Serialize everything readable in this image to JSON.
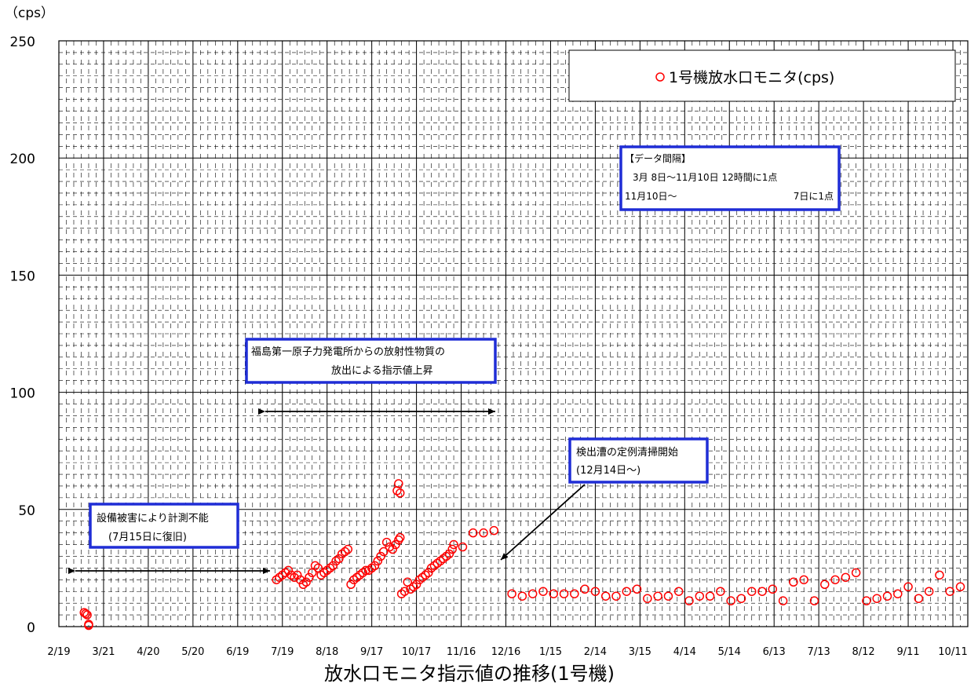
{
  "chart_data": {
    "type": "scatter",
    "title": "放水口モニタ指示値の推移(1号機)",
    "ylabel": "（cps）",
    "xlabel": "",
    "ylim": [
      0,
      250
    ],
    "yticks": [
      0,
      50,
      100,
      150,
      200,
      250
    ],
    "xlim": [
      "2011-02-19",
      "2012-10-21"
    ],
    "xticks": [
      {
        "label": "2/19",
        "date": "2011-02-19"
      },
      {
        "label": "3/21",
        "date": "2011-03-21"
      },
      {
        "label": "4/20",
        "date": "2011-04-20"
      },
      {
        "label": "5/20",
        "date": "2011-05-20"
      },
      {
        "label": "6/19",
        "date": "2011-06-19"
      },
      {
        "label": "7/19",
        "date": "2011-07-19"
      },
      {
        "label": "8/18",
        "date": "2011-08-18"
      },
      {
        "label": "9/17",
        "date": "2011-09-17"
      },
      {
        "label": "10/17",
        "date": "2011-10-17"
      },
      {
        "label": "11/16",
        "date": "2011-11-16"
      },
      {
        "label": "12/16",
        "date": "2011-12-16"
      },
      {
        "label": "1/15",
        "date": "2012-01-15"
      },
      {
        "label": "2/14",
        "date": "2012-02-14"
      },
      {
        "label": "3/15",
        "date": "2012-03-15"
      },
      {
        "label": "4/14",
        "date": "2012-04-14"
      },
      {
        "label": "5/14",
        "date": "2012-05-14"
      },
      {
        "label": "6/13",
        "date": "2012-06-13"
      },
      {
        "label": "7/13",
        "date": "2012-07-13"
      },
      {
        "label": "8/12",
        "date": "2012-08-12"
      },
      {
        "label": "9/11",
        "date": "2012-09-11"
      },
      {
        "label": "10/11",
        "date": "2012-10-11"
      }
    ],
    "grid": true,
    "legend_position": "top-right",
    "series": [
      {
        "name": "1号機放水口モニタ(cps)",
        "color": "#ff0000",
        "marker": "open-circle",
        "points": [
          {
            "x": "2011-03-08",
            "y": 6
          },
          {
            "x": "2011-03-09",
            "y": 5.5
          },
          {
            "x": "2011-03-10",
            "y": 5
          },
          {
            "x": "2011-03-11",
            "y": 1
          },
          {
            "x": "2011-03-11",
            "y": 0.5
          },
          {
            "x": "2011-07-15",
            "y": 20
          },
          {
            "x": "2011-07-17",
            "y": 21
          },
          {
            "x": "2011-07-19",
            "y": 22
          },
          {
            "x": "2011-07-21",
            "y": 23
          },
          {
            "x": "2011-07-23",
            "y": 24
          },
          {
            "x": "2011-07-25",
            "y": 22
          },
          {
            "x": "2011-07-27",
            "y": 21
          },
          {
            "x": "2011-07-29",
            "y": 22
          },
          {
            "x": "2011-07-31",
            "y": 20
          },
          {
            "x": "2011-08-02",
            "y": 18
          },
          {
            "x": "2011-08-04",
            "y": 19
          },
          {
            "x": "2011-08-06",
            "y": 21
          },
          {
            "x": "2011-08-08",
            "y": 23
          },
          {
            "x": "2011-08-10",
            "y": 26
          },
          {
            "x": "2011-08-12",
            "y": 25
          },
          {
            "x": "2011-08-14",
            "y": 22
          },
          {
            "x": "2011-08-16",
            "y": 23
          },
          {
            "x": "2011-08-18",
            "y": 24
          },
          {
            "x": "2011-08-20",
            "y": 25
          },
          {
            "x": "2011-08-22",
            "y": 26
          },
          {
            "x": "2011-08-24",
            "y": 28
          },
          {
            "x": "2011-08-26",
            "y": 29
          },
          {
            "x": "2011-08-28",
            "y": 31
          },
          {
            "x": "2011-08-30",
            "y": 32
          },
          {
            "x": "2011-09-01",
            "y": 33
          },
          {
            "x": "2011-09-03",
            "y": 18
          },
          {
            "x": "2011-09-05",
            "y": 20
          },
          {
            "x": "2011-09-07",
            "y": 21
          },
          {
            "x": "2011-09-09",
            "y": 22
          },
          {
            "x": "2011-09-11",
            "y": 23
          },
          {
            "x": "2011-09-13",
            "y": 24
          },
          {
            "x": "2011-09-15",
            "y": 24
          },
          {
            "x": "2011-09-17",
            "y": 25
          },
          {
            "x": "2011-09-19",
            "y": 26
          },
          {
            "x": "2011-09-21",
            "y": 28
          },
          {
            "x": "2011-09-23",
            "y": 30
          },
          {
            "x": "2011-09-25",
            "y": 32
          },
          {
            "x": "2011-09-27",
            "y": 36
          },
          {
            "x": "2011-09-29",
            "y": 34
          },
          {
            "x": "2011-10-01",
            "y": 33
          },
          {
            "x": "2011-10-03",
            "y": 35
          },
          {
            "x": "2011-10-05",
            "y": 37
          },
          {
            "x": "2011-10-06",
            "y": 38
          },
          {
            "x": "2011-10-04",
            "y": 58
          },
          {
            "x": "2011-10-05",
            "y": 61
          },
          {
            "x": "2011-10-06",
            "y": 57
          },
          {
            "x": "2011-10-07",
            "y": 14
          },
          {
            "x": "2011-10-09",
            "y": 15
          },
          {
            "x": "2011-10-11",
            "y": 19
          },
          {
            "x": "2011-10-13",
            "y": 16
          },
          {
            "x": "2011-10-15",
            "y": 17
          },
          {
            "x": "2011-10-17",
            "y": 18
          },
          {
            "x": "2011-10-19",
            "y": 20
          },
          {
            "x": "2011-10-21",
            "y": 21
          },
          {
            "x": "2011-10-23",
            "y": 22
          },
          {
            "x": "2011-10-25",
            "y": 23
          },
          {
            "x": "2011-10-27",
            "y": 25
          },
          {
            "x": "2011-10-29",
            "y": 26
          },
          {
            "x": "2011-10-31",
            "y": 27
          },
          {
            "x": "2011-11-02",
            "y": 28
          },
          {
            "x": "2011-11-04",
            "y": 29
          },
          {
            "x": "2011-11-06",
            "y": 30
          },
          {
            "x": "2011-11-08",
            "y": 31
          },
          {
            "x": "2011-11-10",
            "y": 33
          },
          {
            "x": "2011-11-11",
            "y": 35
          },
          {
            "x": "2011-11-17",
            "y": 34
          },
          {
            "x": "2011-11-24",
            "y": 40
          },
          {
            "x": "2011-12-01",
            "y": 40
          },
          {
            "x": "2011-12-08",
            "y": 41
          },
          {
            "x": "2011-12-20",
            "y": 14
          },
          {
            "x": "2011-12-27",
            "y": 13
          },
          {
            "x": "2012-01-03",
            "y": 14
          },
          {
            "x": "2012-01-10",
            "y": 15
          },
          {
            "x": "2012-01-17",
            "y": 14
          },
          {
            "x": "2012-01-24",
            "y": 14
          },
          {
            "x": "2012-01-31",
            "y": 14
          },
          {
            "x": "2012-02-07",
            "y": 16
          },
          {
            "x": "2012-02-14",
            "y": 15
          },
          {
            "x": "2012-02-21",
            "y": 13
          },
          {
            "x": "2012-02-28",
            "y": 13
          },
          {
            "x": "2012-03-06",
            "y": 15
          },
          {
            "x": "2012-03-13",
            "y": 16
          },
          {
            "x": "2012-03-20",
            "y": 12
          },
          {
            "x": "2012-03-27",
            "y": 13
          },
          {
            "x": "2012-04-03",
            "y": 13
          },
          {
            "x": "2012-04-10",
            "y": 15
          },
          {
            "x": "2012-04-17",
            "y": 11
          },
          {
            "x": "2012-04-24",
            "y": 13
          },
          {
            "x": "2012-05-01",
            "y": 13
          },
          {
            "x": "2012-05-08",
            "y": 15
          },
          {
            "x": "2012-05-15",
            "y": 11
          },
          {
            "x": "2012-05-22",
            "y": 12
          },
          {
            "x": "2012-05-29",
            "y": 15
          },
          {
            "x": "2012-06-05",
            "y": 15
          },
          {
            "x": "2012-06-12",
            "y": 16
          },
          {
            "x": "2012-06-19",
            "y": 11
          },
          {
            "x": "2012-06-26",
            "y": 19
          },
          {
            "x": "2012-07-03",
            "y": 20
          },
          {
            "x": "2012-07-10",
            "y": 11
          },
          {
            "x": "2012-07-17",
            "y": 18
          },
          {
            "x": "2012-07-24",
            "y": 20
          },
          {
            "x": "2012-07-31",
            "y": 21
          },
          {
            "x": "2012-08-07",
            "y": 23
          },
          {
            "x": "2012-08-14",
            "y": 11
          },
          {
            "x": "2012-08-21",
            "y": 12
          },
          {
            "x": "2012-08-28",
            "y": 13
          },
          {
            "x": "2012-09-04",
            "y": 14
          },
          {
            "x": "2012-09-11",
            "y": 17
          },
          {
            "x": "2012-09-18",
            "y": 12
          },
          {
            "x": "2012-09-25",
            "y": 15
          },
          {
            "x": "2012-10-02",
            "y": 22
          },
          {
            "x": "2012-10-09",
            "y": 15
          },
          {
            "x": "2012-10-16",
            "y": 17
          }
        ]
      }
    ],
    "annotations": [
      {
        "id": "interval",
        "lines": [
          "【データ間隔】",
          "3月  8日～11月10日  12時間に1点",
          "11月10日～",
          "7日に1点"
        ]
      },
      {
        "id": "release",
        "lines": [
          "福島第一原子力発電所からの放射性物質の",
          "放出による指示値上昇"
        ]
      },
      {
        "id": "damage",
        "lines": [
          "設備被害により計測不能",
          "(7月15日に復旧)"
        ]
      },
      {
        "id": "cleaning",
        "lines": [
          "検出漕の定例清掃開始",
          "(12月14日～)"
        ]
      }
    ]
  }
}
